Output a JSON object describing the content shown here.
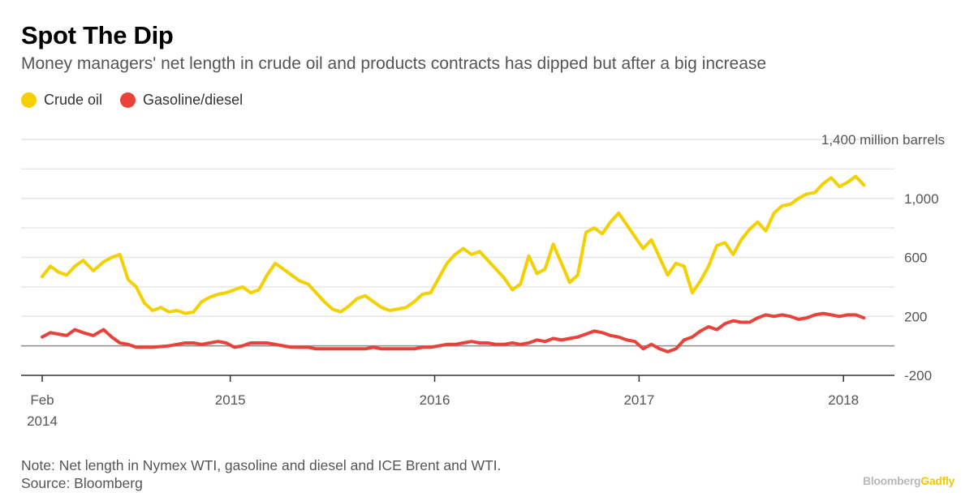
{
  "title": "Spot The Dip",
  "subtitle": "Money managers' net length in crude oil and products contracts has dipped but after a big increase",
  "legend": [
    {
      "label": "Crude oil",
      "color": "#f5d000"
    },
    {
      "label": "Gasoline/diesel",
      "color": "#e8423a"
    }
  ],
  "note": {
    "line1": "Note: Net length in Nymex WTI, gasoline and diesel and ICE Brent and WTI.",
    "line2": "Source: Bloomberg"
  },
  "brand": {
    "part1": "Bloomberg",
    "part2": "Gadfly"
  },
  "chart_data": {
    "type": "line",
    "title": "Spot The Dip",
    "unit": "million barrels",
    "ylim": [
      -200,
      1400
    ],
    "yticks": [
      -200,
      200,
      600,
      1000,
      1400
    ],
    "ytick_labels": [
      "-200",
      "200",
      "600",
      "1,000",
      "1,400 million barrels"
    ],
    "xlim": [
      2014.08,
      2018.15
    ],
    "xticks": [
      2014.08,
      2015.0,
      2016.0,
      2017.0,
      2018.0
    ],
    "xtick_labels": [
      [
        "Feb",
        "2014"
      ],
      [
        "2015"
      ],
      [
        "2016"
      ],
      [
        "2017"
      ],
      [
        "2018"
      ]
    ],
    "zero_line": 0,
    "legend_position": "top-left",
    "series": [
      {
        "name": "Crude oil",
        "color": "#f5d000",
        "x": [
          2014.08,
          2014.12,
          2014.16,
          2014.2,
          2014.24,
          2014.28,
          2014.33,
          2014.38,
          2014.42,
          2014.46,
          2014.5,
          2014.54,
          2014.58,
          2014.62,
          2014.66,
          2014.7,
          2014.74,
          2014.78,
          2014.82,
          2014.86,
          2014.9,
          2014.94,
          2014.98,
          2015.02,
          2015.06,
          2015.1,
          2015.14,
          2015.18,
          2015.22,
          2015.26,
          2015.3,
          2015.34,
          2015.38,
          2015.42,
          2015.46,
          2015.5,
          2015.54,
          2015.58,
          2015.62,
          2015.66,
          2015.7,
          2015.74,
          2015.78,
          2015.82,
          2015.86,
          2015.9,
          2015.94,
          2015.98,
          2016.02,
          2016.06,
          2016.1,
          2016.14,
          2016.18,
          2016.22,
          2016.26,
          2016.3,
          2016.34,
          2016.38,
          2016.42,
          2016.46,
          2016.5,
          2016.54,
          2016.58,
          2016.62,
          2016.66,
          2016.7,
          2016.74,
          2016.78,
          2016.82,
          2016.86,
          2016.9,
          2016.94,
          2016.98,
          2017.02,
          2017.06,
          2017.1,
          2017.14,
          2017.18,
          2017.22,
          2017.26,
          2017.3,
          2017.34,
          2017.38,
          2017.42,
          2017.46,
          2017.5,
          2017.54,
          2017.58,
          2017.62,
          2017.66,
          2017.7,
          2017.74,
          2017.78,
          2017.82,
          2017.86,
          2017.9,
          2017.94,
          2017.98,
          2018.02,
          2018.06,
          2018.1
        ],
        "values": [
          470,
          540,
          500,
          480,
          540,
          580,
          510,
          570,
          600,
          620,
          450,
          400,
          290,
          240,
          260,
          230,
          240,
          220,
          230,
          300,
          330,
          350,
          360,
          380,
          400,
          360,
          380,
          480,
          560,
          520,
          480,
          440,
          420,
          360,
          300,
          250,
          230,
          270,
          320,
          340,
          300,
          260,
          240,
          250,
          260,
          300,
          350,
          360,
          460,
          560,
          620,
          660,
          620,
          640,
          580,
          520,
          460,
          380,
          420,
          610,
          490,
          520,
          690,
          560,
          430,
          480,
          770,
          800,
          760,
          840,
          900,
          820,
          740,
          660,
          720,
          600,
          480,
          560,
          540,
          360,
          440,
          540,
          680,
          700,
          620,
          720,
          790,
          840,
          780,
          900,
          950,
          960,
          1000,
          1030,
          1040,
          1100,
          1140,
          1080,
          1110,
          1150,
          1090
        ]
      },
      {
        "name": "Gasoline/diesel",
        "color": "#e8423a",
        "x": [
          2014.08,
          2014.12,
          2014.16,
          2014.2,
          2014.24,
          2014.28,
          2014.33,
          2014.38,
          2014.42,
          2014.46,
          2014.5,
          2014.54,
          2014.58,
          2014.62,
          2014.66,
          2014.7,
          2014.74,
          2014.78,
          2014.82,
          2014.86,
          2014.9,
          2014.94,
          2014.98,
          2015.02,
          2015.06,
          2015.1,
          2015.14,
          2015.18,
          2015.22,
          2015.26,
          2015.3,
          2015.34,
          2015.38,
          2015.42,
          2015.46,
          2015.5,
          2015.54,
          2015.58,
          2015.62,
          2015.66,
          2015.7,
          2015.74,
          2015.78,
          2015.82,
          2015.86,
          2015.9,
          2015.94,
          2015.98,
          2016.02,
          2016.06,
          2016.1,
          2016.14,
          2016.18,
          2016.22,
          2016.26,
          2016.3,
          2016.34,
          2016.38,
          2016.42,
          2016.46,
          2016.5,
          2016.54,
          2016.58,
          2016.62,
          2016.66,
          2016.7,
          2016.74,
          2016.78,
          2016.82,
          2016.86,
          2016.9,
          2016.94,
          2016.98,
          2017.02,
          2017.06,
          2017.1,
          2017.14,
          2017.18,
          2017.22,
          2017.26,
          2017.3,
          2017.34,
          2017.38,
          2017.42,
          2017.46,
          2017.5,
          2017.54,
          2017.58,
          2017.62,
          2017.66,
          2017.7,
          2017.74,
          2017.78,
          2017.82,
          2017.86,
          2017.9,
          2017.94,
          2017.98,
          2018.02,
          2018.06,
          2018.1
        ],
        "values": [
          60,
          90,
          80,
          70,
          110,
          90,
          70,
          110,
          60,
          20,
          10,
          -10,
          -10,
          -10,
          -5,
          0,
          10,
          20,
          20,
          10,
          20,
          30,
          20,
          -10,
          0,
          20,
          20,
          20,
          10,
          0,
          -10,
          -10,
          -10,
          -20,
          -20,
          -20,
          -20,
          -20,
          -20,
          -20,
          -10,
          -20,
          -20,
          -20,
          -20,
          -20,
          -10,
          -10,
          0,
          10,
          10,
          20,
          30,
          20,
          20,
          10,
          10,
          20,
          10,
          20,
          40,
          30,
          50,
          40,
          50,
          60,
          80,
          100,
          90,
          70,
          60,
          40,
          30,
          -20,
          10,
          -20,
          -40,
          -20,
          40,
          60,
          100,
          130,
          110,
          150,
          170,
          160,
          160,
          190,
          210,
          200,
          210,
          200,
          180,
          190,
          210,
          220,
          210,
          200,
          210,
          210,
          190
        ]
      }
    ]
  }
}
